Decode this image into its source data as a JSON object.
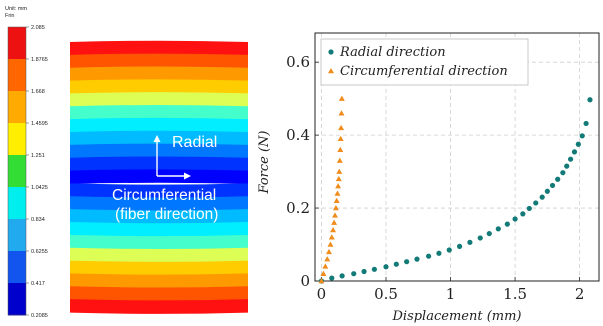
{
  "chart_data": [
    {
      "type": "heatmap",
      "colorbar": {
        "unit_line1": "Unit: mm",
        "unit_line2": "Frin",
        "ticks": [
          "2.085",
          "1.8765",
          "1.668",
          "1.4595",
          "1.251",
          "1.0425",
          "0.834",
          "0.6255",
          "0.417",
          "0.2085"
        ],
        "colors": [
          "#ee1111",
          "#ff6600",
          "#ffaa00",
          "#ffee00",
          "#33dd33",
          "#00eeee",
          "#22aaee",
          "#1155ee",
          "#0000cc"
        ]
      },
      "field": {
        "band_colors": [
          "#ff1111",
          "#ff5500",
          "#ff9900",
          "#ffcc00",
          "#ddff55",
          "#44ffcc",
          "#00eeff",
          "#00bbff",
          "#0077ff",
          "#0033ff",
          "#0000ff",
          "#0033ff",
          "#0077ff",
          "#00bbff",
          "#00eeff",
          "#44ffcc",
          "#ddff55",
          "#ffcc00",
          "#ff9900",
          "#ff5500",
          "#ff1111"
        ],
        "label_radial": "Radial",
        "label_circ_line1": "Circumferential",
        "label_circ_line2": "(fiber direction)"
      }
    },
    {
      "type": "scatter",
      "xlabel": "Displacement (mm)",
      "ylabel": "Force (N)",
      "xlim": [
        -0.05,
        2.15
      ],
      "ylim": [
        0,
        0.68
      ],
      "xticks": [
        0,
        0.5,
        1,
        1.5,
        2
      ],
      "xtick_labels": [
        "0",
        "0.5",
        "1",
        "1.5",
        "2"
      ],
      "yticks": [
        0,
        0.2,
        0.4,
        0.6
      ],
      "ytick_labels": [
        "0",
        "0.2",
        "0.4",
        "0.6"
      ],
      "grid": true,
      "legend_position": "top-left",
      "series": [
        {
          "name": "Radial direction",
          "color": "#127a77",
          "marker": "circle",
          "x": [
            0,
            0.08,
            0.16,
            0.25,
            0.33,
            0.41,
            0.5,
            0.58,
            0.66,
            0.74,
            0.83,
            0.91,
            0.99,
            1.07,
            1.15,
            1.23,
            1.3,
            1.37,
            1.44,
            1.5,
            1.56,
            1.61,
            1.66,
            1.71,
            1.75,
            1.79,
            1.83,
            1.87,
            1.9,
            1.93,
            1.96,
            1.99,
            2.02,
            2.05,
            2.08
          ],
          "y": [
            0,
            0.008,
            0.014,
            0.02,
            0.026,
            0.032,
            0.039,
            0.046,
            0.053,
            0.06,
            0.068,
            0.076,
            0.085,
            0.095,
            0.106,
            0.118,
            0.13,
            0.143,
            0.156,
            0.17,
            0.184,
            0.199,
            0.214,
            0.23,
            0.246,
            0.262,
            0.279,
            0.297,
            0.315,
            0.334,
            0.354,
            0.375,
            0.398,
            0.432,
            0.497
          ]
        },
        {
          "name": "Circumferential direction",
          "color": "#f08c1c",
          "marker": "triangle",
          "x": [
            0,
            0.015,
            0.03,
            0.045,
            0.058,
            0.07,
            0.08,
            0.09,
            0.098,
            0.105,
            0.112,
            0.118,
            0.124,
            0.129,
            0.134,
            0.138,
            0.142,
            0.146,
            0.149,
            0.152,
            0.155,
            0.158
          ],
          "y": [
            0,
            0.02,
            0.04,
            0.06,
            0.08,
            0.1,
            0.12,
            0.14,
            0.16,
            0.18,
            0.2,
            0.22,
            0.24,
            0.26,
            0.28,
            0.3,
            0.33,
            0.36,
            0.39,
            0.42,
            0.46,
            0.5
          ]
        }
      ]
    }
  ]
}
